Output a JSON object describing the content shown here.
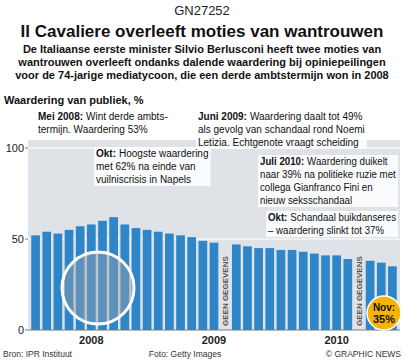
{
  "chart_data": {
    "type": "bar",
    "header": "GN27252",
    "title": "Il Cavaliere overleeft moties van wantrouwen",
    "subtitle": [
      "De Italiaanse eerste minister Silvio Berlusconi heeft twee moties van",
      "wantrouwen overleeft ondanks dalende waardering bij opiniepeilingen",
      "voor de 74-jarige mediatycoon, die een derde ambtstermijn won in 2008"
    ],
    "y_label": "Waardering van publiek, %",
    "categories": [
      null,
      null,
      null,
      null,
      null,
      "2008",
      null,
      null,
      null,
      null,
      null,
      null,
      null,
      null,
      null,
      null,
      "2009",
      null,
      null,
      null,
      null,
      null,
      null,
      null,
      null,
      null,
      null,
      "2010",
      null,
      null,
      null,
      null,
      null
    ],
    "values": [
      52,
      54,
      53,
      55,
      57,
      58,
      60,
      62,
      58,
      56,
      55,
      54,
      53,
      52,
      51,
      49,
      48,
      null,
      47,
      46,
      45,
      45,
      44,
      44,
      43,
      42,
      41,
      41,
      39,
      null,
      38,
      37,
      35
    ],
    "color": "#2e86c8",
    "ylim": [
      0,
      100
    ],
    "yticks": [
      0,
      50,
      100
    ],
    "grid": true,
    "no_data_label": "GEEN GEGEVENS",
    "annotations": [
      {
        "label": "Mei 2008:",
        "lines": [
          "Wint derde ambts-",
          "termijn. Waardering 53%"
        ]
      },
      {
        "label": "Okt:",
        "lines": [
          "Hoogste waardering",
          "met 62% na einde van",
          "vuilniscrisis in Napels"
        ]
      },
      {
        "label": "Juni 2009:",
        "lines": [
          "Waardering daalt tot 49%",
          "als gevolg van schandaal rond Noemi",
          "Letizia. Echtgenote vraagt scheiding"
        ]
      },
      {
        "label": "Juli 2010:",
        "lines": [
          "Waardering duikelt",
          "naar 39% na politieke ruzie met",
          "collega Gianfranco Fini en",
          "nieuw seksschandaal"
        ]
      },
      {
        "label": "Okt:",
        "lines": [
          "Schandaal buikdanseres",
          "– waardering slinkt tot 37%"
        ]
      }
    ],
    "callout": {
      "label": "Nov:",
      "text": "35%"
    },
    "source": "Bron: IPR Instituut",
    "photo_credit": "Foto: Getty Images",
    "credit": "© GRAPHIC NEWS"
  }
}
